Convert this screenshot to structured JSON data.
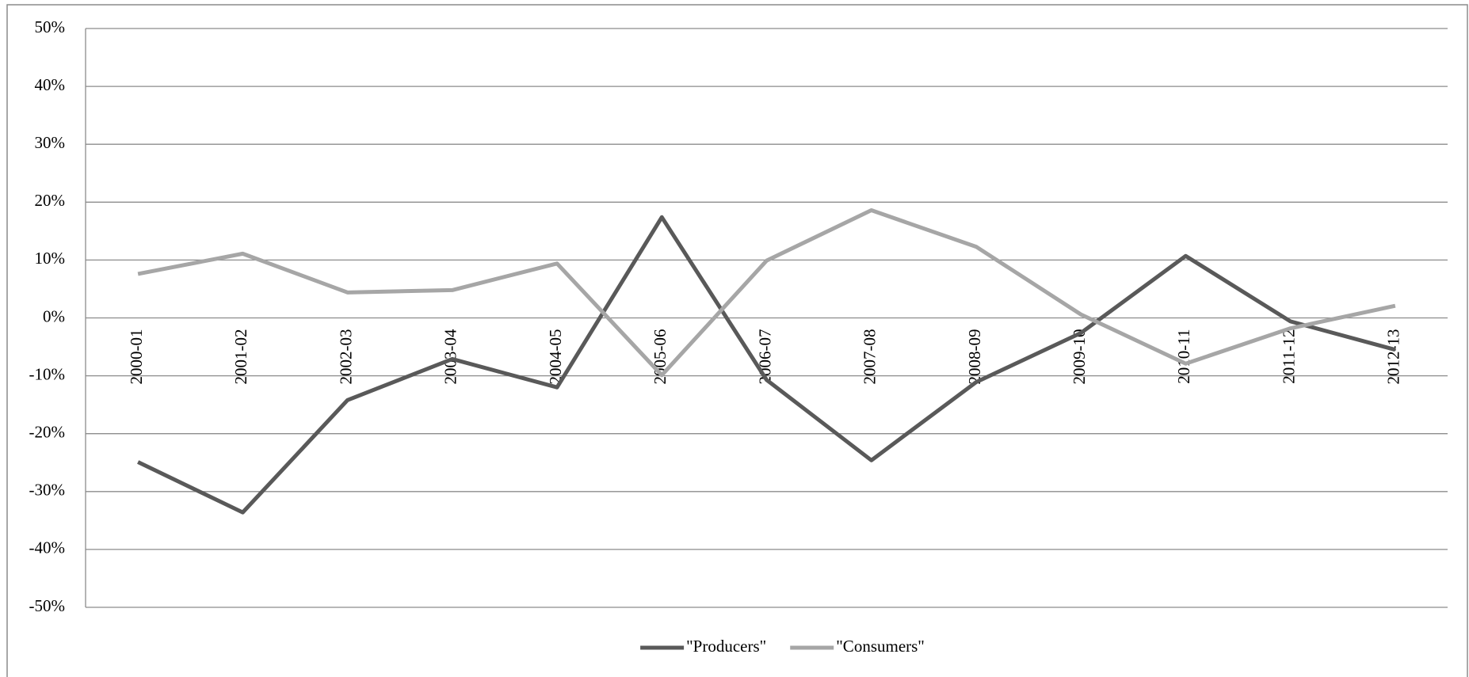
{
  "chart_data": {
    "type": "line",
    "categories": [
      "2000-01",
      "2001-02",
      "2002-03",
      "2003-04",
      "2004-05",
      "2005-06",
      "2006-07",
      "2007-08",
      "2008-09",
      "2009-10",
      "2010-11",
      "2011-12",
      "2012-13"
    ],
    "series": [
      {
        "name": "\"Producers\"",
        "color": "#595959",
        "values": [
          -24.9,
          -33.6,
          -14.2,
          -7.1,
          -12,
          17.4,
          -10.7,
          -24.6,
          -11.1,
          -2.6,
          10.7,
          -0.6,
          -5.5
        ]
      },
      {
        "name": "\"Consumers\"",
        "color": "#a6a6a6",
        "values": [
          7.6,
          11.1,
          4.4,
          4.8,
          9.4,
          -9.9,
          9.9,
          18.6,
          12.3,
          0.6,
          -7.9,
          -1.8,
          2.1
        ]
      }
    ],
    "ylim": [
      -50,
      50
    ],
    "yticks": [
      {
        "value": -50,
        "label": "-50%"
      },
      {
        "value": -40,
        "label": "-40%"
      },
      {
        "value": -30,
        "label": "-30%"
      },
      {
        "value": -20,
        "label": "-20%"
      },
      {
        "value": -10,
        "label": "-10%"
      },
      {
        "value": 0,
        "label": "0%"
      },
      {
        "value": 10,
        "label": "10%"
      },
      {
        "value": 20,
        "label": "20%"
      },
      {
        "value": 30,
        "label": "30%"
      },
      {
        "value": 40,
        "label": "40%"
      },
      {
        "value": 50,
        "label": "50%"
      }
    ],
    "grid": true,
    "legend": "bottom"
  }
}
